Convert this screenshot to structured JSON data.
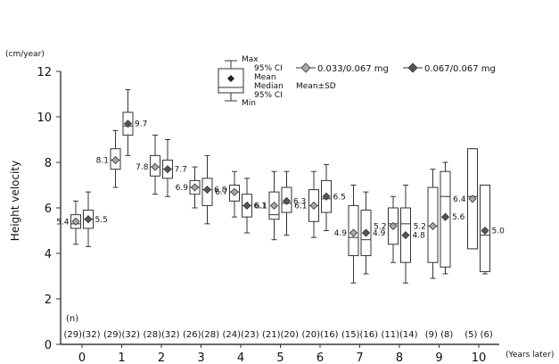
{
  "chart_data": {
    "type": "box",
    "y_unit": "(cm/year)",
    "ylabel": "Height velocity",
    "xlabel": "(Years later)",
    "ylim": [
      0,
      12
    ],
    "y_ticks": [
      0,
      2,
      4,
      6,
      8,
      10,
      12
    ],
    "categories": [
      "0",
      "1",
      "2",
      "3",
      "4",
      "5",
      "6",
      "7",
      "8",
      "9",
      "10"
    ],
    "n_header": "(n)",
    "n_labels": [
      "(29)(32)",
      "(29)(32)",
      "(28)(32)",
      "(26)(28)",
      "(24)(23)",
      "(21)(20)",
      "(20)(16)",
      "(15)(16)",
      "(11)(14)",
      "(9)  (8)",
      "(5)  (6)"
    ],
    "series": [
      {
        "name": "0.033/0.067 mg",
        "marker_color": "#a9a9a9",
        "mean_labels": [
          "5.4",
          "8.1",
          "7.8",
          "6.9",
          "6.7",
          "6.1",
          "6.1",
          "4.9",
          "5.2",
          "5.2",
          "6.4"
        ],
        "boxes": [
          {
            "min": 4.4,
            "ci_low": 5.1,
            "median": 5.3,
            "mean": 5.4,
            "ci_high": 5.7,
            "max": 6.3
          },
          {
            "min": 6.9,
            "ci_low": 7.7,
            "median": 8.1,
            "mean": 8.1,
            "ci_high": 8.6,
            "max": 9.4
          },
          {
            "min": 6.6,
            "ci_low": 7.4,
            "median": 7.8,
            "mean": 7.8,
            "ci_high": 8.3,
            "max": 9.2
          },
          {
            "min": 6.0,
            "ci_low": 6.6,
            "median": 6.9,
            "mean": 6.9,
            "ci_high": 7.2,
            "max": 7.8
          },
          {
            "min": 5.6,
            "ci_low": 6.3,
            "median": 6.7,
            "mean": 6.7,
            "ci_high": 7.0,
            "max": 7.6
          },
          {
            "min": 4.6,
            "ci_low": 5.5,
            "median": 5.7,
            "mean": 6.1,
            "ci_high": 6.7,
            "max": 7.6
          },
          {
            "min": 4.7,
            "ci_low": 5.4,
            "median": 6.1,
            "mean": 6.1,
            "ci_high": 6.8,
            "max": 7.6
          },
          {
            "min": 2.7,
            "ci_low": 3.9,
            "median": 4.7,
            "mean": 4.9,
            "ci_high": 6.1,
            "max": 7.0
          },
          {
            "min": 3.6,
            "ci_low": 4.4,
            "median": 5.3,
            "mean": 5.2,
            "ci_high": 6.0,
            "max": 6.5
          },
          {
            "min": 2.9,
            "ci_low": 3.6,
            "median": 5.2,
            "mean": 5.2,
            "ci_high": 6.9,
            "max": 7.7
          },
          {
            "min": 4.6,
            "ci_low": 4.2,
            "median": 6.5,
            "mean": 6.4,
            "ci_high": 8.6,
            "max": 8.6
          }
        ]
      },
      {
        "name": "0.067/0.067 mg",
        "marker_color": "#555555",
        "mean_labels": [
          "5.5",
          "9.7",
          "7.7",
          "6.8",
          "6.1",
          "6.3",
          "6.5",
          "4.9",
          "4.8",
          "5.6",
          "5.0"
        ],
        "boxes": [
          {
            "min": 4.3,
            "ci_low": 5.1,
            "median": 5.5,
            "mean": 5.5,
            "ci_high": 5.9,
            "max": 6.7
          },
          {
            "min": 8.3,
            "ci_low": 9.2,
            "median": 9.6,
            "mean": 9.7,
            "ci_high": 10.2,
            "max": 11.2
          },
          {
            "min": 6.5,
            "ci_low": 7.3,
            "median": 7.7,
            "mean": 7.7,
            "ci_high": 8.1,
            "max": 9.0
          },
          {
            "min": 5.3,
            "ci_low": 6.1,
            "median": 6.8,
            "mean": 6.8,
            "ci_high": 7.3,
            "max": 8.3
          },
          {
            "min": 4.9,
            "ci_low": 5.6,
            "median": 6.1,
            "mean": 6.1,
            "ci_high": 6.6,
            "max": 7.3
          },
          {
            "min": 4.8,
            "ci_low": 5.8,
            "median": 6.2,
            "mean": 6.3,
            "ci_high": 6.9,
            "max": 7.6
          },
          {
            "min": 5.0,
            "ci_low": 5.8,
            "median": 6.4,
            "mean": 6.5,
            "ci_high": 7.2,
            "max": 7.9
          },
          {
            "min": 3.1,
            "ci_low": 3.9,
            "median": 4.6,
            "mean": 4.9,
            "ci_high": 5.9,
            "max": 6.7
          },
          {
            "min": 2.7,
            "ci_low": 3.6,
            "median": 5.3,
            "mean": 4.8,
            "ci_high": 6.0,
            "max": 7.0
          },
          {
            "min": 3.1,
            "ci_low": 3.4,
            "median": 6.5,
            "mean": 5.6,
            "ci_high": 7.6,
            "max": 8.0
          },
          {
            "min": 3.1,
            "ci_low": 3.2,
            "median": 4.8,
            "mean": 5.0,
            "ci_high": 7.0,
            "max": 7.0
          }
        ]
      }
    ],
    "legend": {
      "key_labels": [
        "Max",
        "95% CI",
        "Mean",
        "Median",
        "95% CI",
        "Min"
      ],
      "sd_note": "Mean±SD"
    }
  }
}
